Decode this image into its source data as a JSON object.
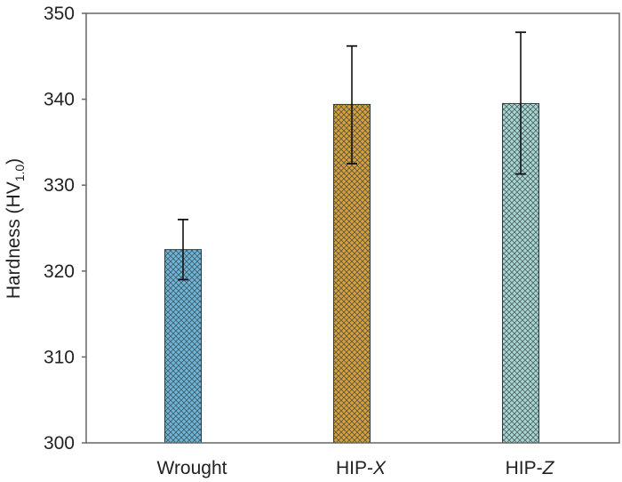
{
  "chart_data": {
    "type": "bar",
    "title": "",
    "xlabel": "",
    "ylabel": "Hardness (HV",
    "ylabel_subscript": "1.0",
    "ylabel_close": ")",
    "ylim": [
      300,
      350
    ],
    "yticks": [
      300,
      310,
      320,
      330,
      340,
      350
    ],
    "grid": false,
    "categories": [
      {
        "prefix": "Wrought",
        "italic": ""
      },
      {
        "prefix": "HIP-",
        "italic": "X"
      },
      {
        "prefix": "HIP-",
        "italic": "Z"
      }
    ],
    "values": [
      322.5,
      339.4,
      339.5
    ],
    "error_low": [
      319.0,
      332.5,
      331.3
    ],
    "error_high": [
      326.0,
      346.2,
      347.8
    ],
    "colors": [
      "#6fb6d8",
      "#d9a13c",
      "#a9d6d1"
    ],
    "pattern": "crosshatch"
  }
}
